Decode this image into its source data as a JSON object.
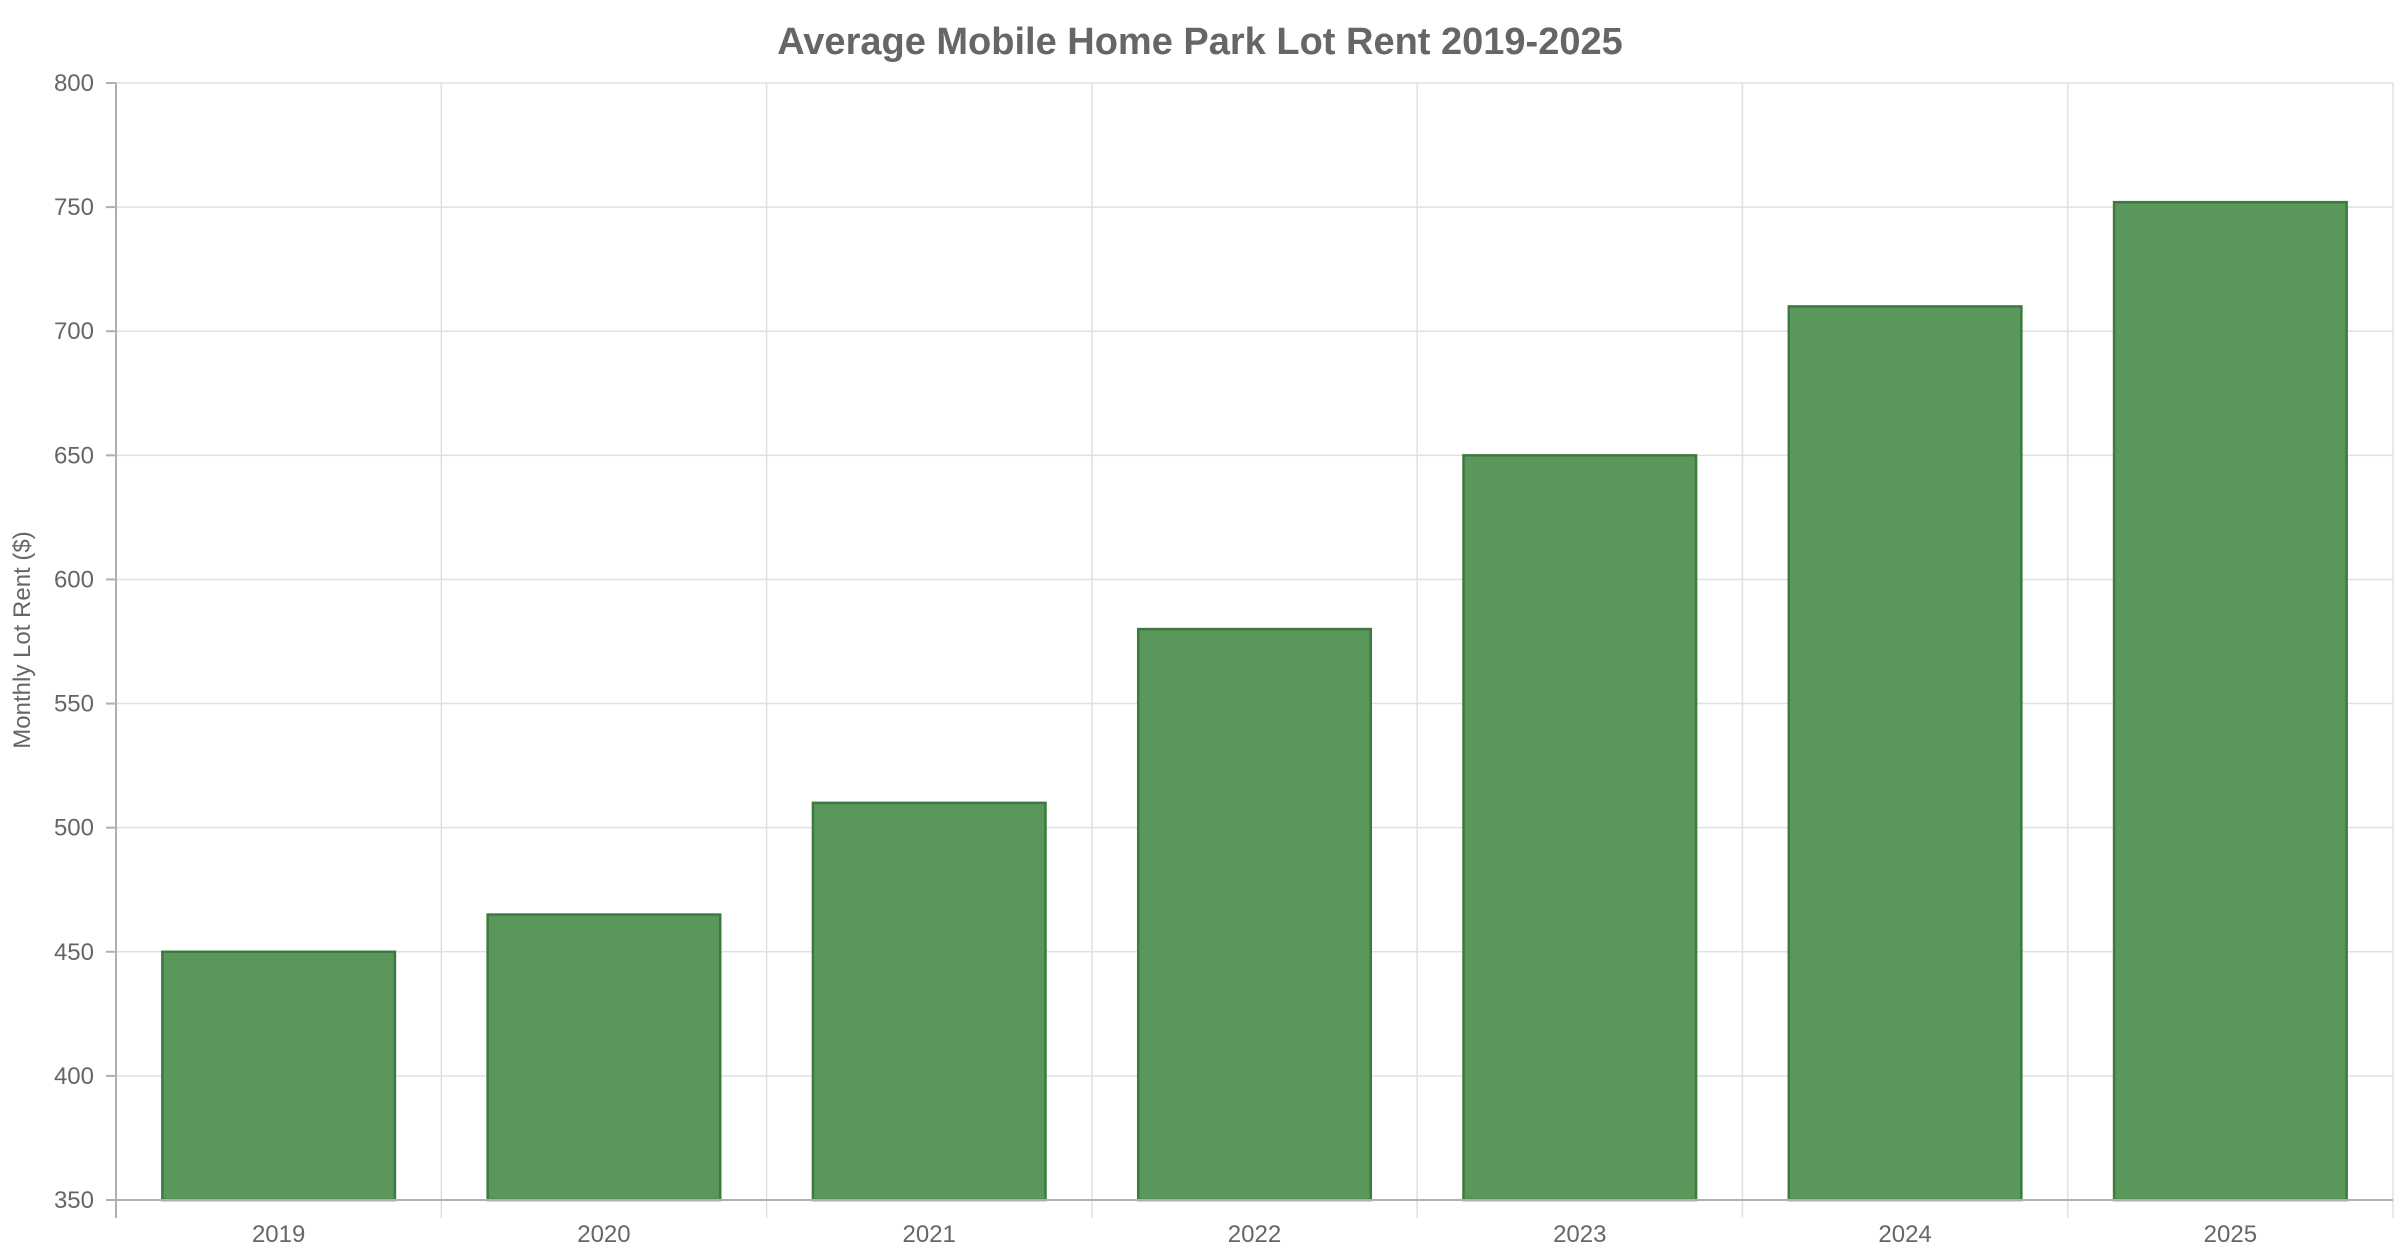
{
  "chart_data": {
    "type": "bar",
    "title": "Average Mobile Home Park Lot Rent 2019-2025",
    "xlabel": "",
    "ylabel": "Monthly Lot Rent ($)",
    "categories": [
      "2019",
      "2020",
      "2021",
      "2022",
      "2023",
      "2024",
      "2025"
    ],
    "values": [
      450,
      465,
      510,
      580,
      650,
      710,
      752
    ],
    "ylim": [
      350,
      800
    ],
    "yticks": [
      350,
      400,
      450,
      500,
      550,
      600,
      650,
      700,
      750,
      800
    ],
    "ytick_labels": [
      "350",
      "400",
      "450",
      "500",
      "550",
      "600",
      "650",
      "700",
      "750",
      "800"
    ],
    "grid": true,
    "legend": "none",
    "colors": {
      "bar_fill": "#5a975a",
      "bar_stroke": "#3d7a3d"
    }
  }
}
